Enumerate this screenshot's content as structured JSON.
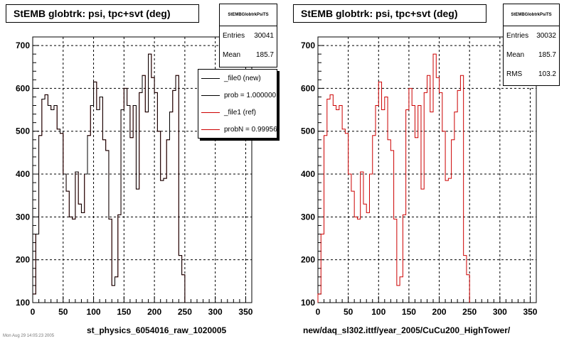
{
  "chart_data": [
    {
      "type": "line",
      "title": "StEMB globtrk: psi, tpc+svt (deg)",
      "xlabel": "st_physics_6054016_raw_1020005",
      "ylabel": "",
      "xlim": [
        0,
        360
      ],
      "ylim": [
        100,
        720
      ],
      "x_ticks": [
        0,
        50,
        100,
        150,
        200,
        250,
        300,
        350
      ],
      "y_ticks": [
        100,
        200,
        300,
        400,
        500,
        600,
        700
      ],
      "grid": true,
      "stats": {
        "title": "StEMBGlobtrkPsiTS",
        "rows": [
          {
            "label": "Entries",
            "value": "30041"
          },
          {
            "label": "Mean",
            "value": "185.7"
          }
        ]
      },
      "legend": {
        "placement": "top-right",
        "entries": [
          {
            "label": "_file0 (new)",
            "color": "#000000"
          },
          {
            "label": "prob = 1.000000",
            "color": "#000000"
          },
          {
            "label": "_file1 (ref)",
            "color": "#cc0000"
          },
          {
            "label": "probN = 0.999563",
            "color": "#cc0000"
          }
        ]
      },
      "series": [
        {
          "color": "#cc0000",
          "bin_width": 5,
          "values": [
            120,
            260,
            490,
            575,
            585,
            560,
            550,
            560,
            505,
            495,
            400,
            360,
            300,
            295,
            405,
            330,
            310,
            400,
            490,
            560,
            615,
            550,
            580,
            480,
            455,
            295,
            140,
            160,
            305,
            550,
            600,
            560,
            485,
            560,
            365,
            590,
            630,
            545,
            680,
            625,
            590,
            500,
            385,
            390,
            480,
            545,
            595,
            630,
            210,
            165
          ]
        },
        {
          "color": "#000000",
          "bin_width": 5,
          "values": [
            120,
            260,
            490,
            575,
            585,
            560,
            550,
            560,
            505,
            495,
            400,
            360,
            300,
            295,
            405,
            330,
            310,
            400,
            490,
            560,
            615,
            550,
            580,
            480,
            455,
            295,
            140,
            160,
            305,
            550,
            600,
            560,
            485,
            560,
            365,
            590,
            630,
            545,
            680,
            625,
            590,
            500,
            385,
            390,
            480,
            545,
            595,
            630,
            210,
            165
          ]
        }
      ]
    },
    {
      "type": "line",
      "title": "StEMB globtrk: psi, tpc+svt (deg)",
      "xlabel": "new/daq_sl302.ittf/year_2005/CuCu200_HighTower/",
      "ylabel": "",
      "xlim": [
        0,
        360
      ],
      "ylim": [
        100,
        720
      ],
      "x_ticks": [
        0,
        50,
        100,
        150,
        200,
        250,
        300,
        350
      ],
      "y_ticks": [
        100,
        200,
        300,
        400,
        500,
        600,
        700
      ],
      "grid": true,
      "stats": {
        "title": "StEMBGlobtrkPsiTS",
        "rows": [
          {
            "label": "Entries",
            "value": "30032"
          },
          {
            "label": "Mean",
            "value": "185.7"
          },
          {
            "label": "RMS",
            "value": "103.2"
          }
        ]
      },
      "series": [
        {
          "color": "#cc0000",
          "bin_width": 5,
          "values": [
            120,
            260,
            490,
            575,
            585,
            560,
            550,
            560,
            505,
            495,
            400,
            360,
            300,
            295,
            405,
            330,
            310,
            400,
            490,
            560,
            615,
            550,
            580,
            480,
            455,
            295,
            140,
            160,
            305,
            550,
            600,
            560,
            485,
            560,
            365,
            590,
            630,
            545,
            680,
            625,
            590,
            500,
            385,
            390,
            480,
            545,
            595,
            630,
            210,
            165
          ]
        }
      ]
    }
  ],
  "footer": "Mon Aug 29 14:05:23 2005"
}
